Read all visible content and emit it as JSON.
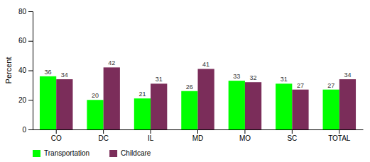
{
  "chart_data": {
    "type": "bar",
    "categories": [
      "CO",
      "DC",
      "IL",
      "MD",
      "MO",
      "SC",
      "TOTAL"
    ],
    "series": [
      {
        "name": "Transportation",
        "color": "#00ff00",
        "values": [
          36,
          20,
          21,
          26,
          33,
          31,
          27
        ]
      },
      {
        "name": "Childcare",
        "color": "#7b2d5a",
        "values": [
          34,
          42,
          31,
          41,
          32,
          27,
          34
        ]
      }
    ],
    "ylabel": "Percent",
    "ylim": [
      0,
      80
    ],
    "yticks": [
      0,
      20,
      40,
      60,
      80
    ],
    "data_labels": true,
    "legend": "bottom"
  }
}
